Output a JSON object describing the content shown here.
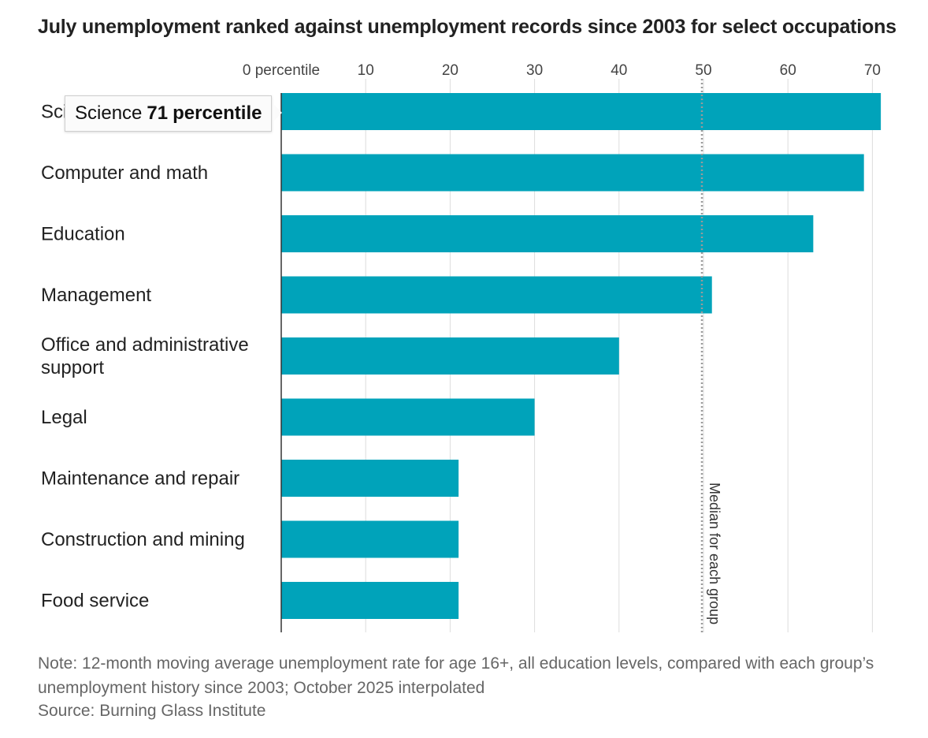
{
  "chart_data": {
    "type": "bar",
    "orientation": "horizontal",
    "title": "July unemployment ranked against unemployment records since 2003 for select occupations",
    "categories": [
      "Science",
      "Computer and math",
      "Education",
      "Management",
      "Office and administrative support",
      "Legal",
      "Maintenance and repair",
      "Construction and mining",
      "Food service"
    ],
    "values": [
      71,
      69,
      63,
      51,
      40,
      30,
      21,
      21,
      21
    ],
    "xlim": [
      0,
      72
    ],
    "xticks": [
      0,
      10,
      20,
      30,
      40,
      50,
      60,
      70
    ],
    "xtick_labels": [
      "0 percentile",
      "10",
      "20",
      "30",
      "40",
      "50",
      "60",
      "70"
    ],
    "bar_color": "#00A3BA",
    "grid": "vertical",
    "reference_line": {
      "value": 50,
      "label": "Median for each group",
      "style": "dotted"
    },
    "tooltip": {
      "category": "Science",
      "value": "71",
      "suffix": "percentile"
    },
    "note": "Note: 12-month moving average unemployment rate for age 16+, all education levels, compared with each group’s unemployment history since 2003; October 2025 interpolated",
    "source": "Source: Burning Glass Institute"
  }
}
